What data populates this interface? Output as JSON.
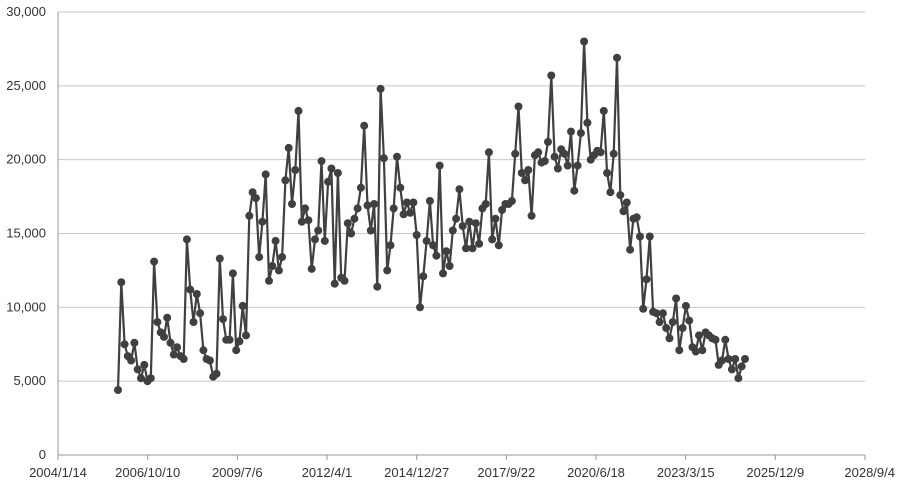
{
  "chart_data": {
    "type": "line",
    "title": "",
    "xlabel": "",
    "ylabel": "",
    "ylim": [
      0,
      30000
    ],
    "y_ticks": [
      0,
      5000,
      10000,
      15000,
      20000,
      25000,
      30000
    ],
    "y_tick_labels": [
      "0",
      "5,000",
      "10,000",
      "15,000",
      "20,000",
      "25,000",
      "30,000"
    ],
    "x_tick_labels": [
      "2004/1/14",
      "2006/10/10",
      "2009/7/6",
      "2012/4/1",
      "2014/12/27",
      "2017/9/22",
      "2020/6/18",
      "2023/3/15",
      "2025/12/9",
      "2028/9/4"
    ],
    "grid": "horizontal",
    "legend": "none",
    "colors": {
      "series": "#404040",
      "grid": "#c8c8c8",
      "axis": "#999999"
    },
    "series": [
      {
        "values": [
          4400,
          11700,
          7500,
          6700,
          6400,
          7600,
          5800,
          5200,
          6100,
          5000,
          5200,
          13100,
          9000,
          8300,
          8000,
          9300,
          7600,
          6800,
          7300,
          6700,
          6500,
          14600,
          11200,
          9000,
          10900,
          9600,
          7100,
          6500,
          6400,
          5300,
          5500,
          13300,
          9200,
          7800,
          7800,
          12300,
          7100,
          7700,
          10100,
          8100,
          16200,
          17800,
          17400,
          13400,
          15800,
          19000,
          11800,
          12800,
          14500,
          12500,
          13400,
          18600,
          20800,
          17000,
          19300,
          23300,
          15800,
          16700,
          15900,
          12600,
          14600,
          15200,
          19900,
          14500,
          18500,
          19400,
          11600,
          19100,
          12000,
          11800,
          15700,
          15000,
          16000,
          16700,
          18100,
          22300,
          16900,
          15200,
          17000,
          11400,
          24800,
          20100,
          12500,
          14200,
          16700,
          20200,
          18100,
          16300,
          17100,
          16400,
          17100,
          14900,
          10000,
          12100,
          14500,
          17200,
          14200,
          13500,
          19600,
          12300,
          13800,
          12800,
          15200,
          16000,
          18000,
          15500,
          14000,
          15800,
          14000,
          15700,
          14300,
          16700,
          17000,
          20500,
          14600,
          16000,
          14200,
          16600,
          17000,
          17000,
          17200,
          20400,
          23600,
          19100,
          18600,
          19300,
          16200,
          20300,
          20500,
          19800,
          19900,
          21200,
          25700,
          20200,
          19400,
          20700,
          20400,
          19600,
          21900,
          17900,
          19600,
          21800,
          28000,
          22500,
          20000,
          20300,
          20600,
          20500,
          23300,
          19100,
          17800,
          20400,
          26900,
          17600,
          16500,
          17100,
          13900,
          16000,
          16100,
          14800,
          9900,
          11900,
          14800,
          9700,
          9600,
          9000,
          9600,
          8600,
          7900,
          9000,
          10600,
          7100,
          8600,
          10100,
          9100,
          7300,
          7000,
          8100,
          7100,
          8300,
          8100,
          7900,
          7800,
          6100,
          6400,
          7800,
          6500,
          5800,
          6500,
          5200,
          6000,
          6500
        ]
      }
    ]
  }
}
